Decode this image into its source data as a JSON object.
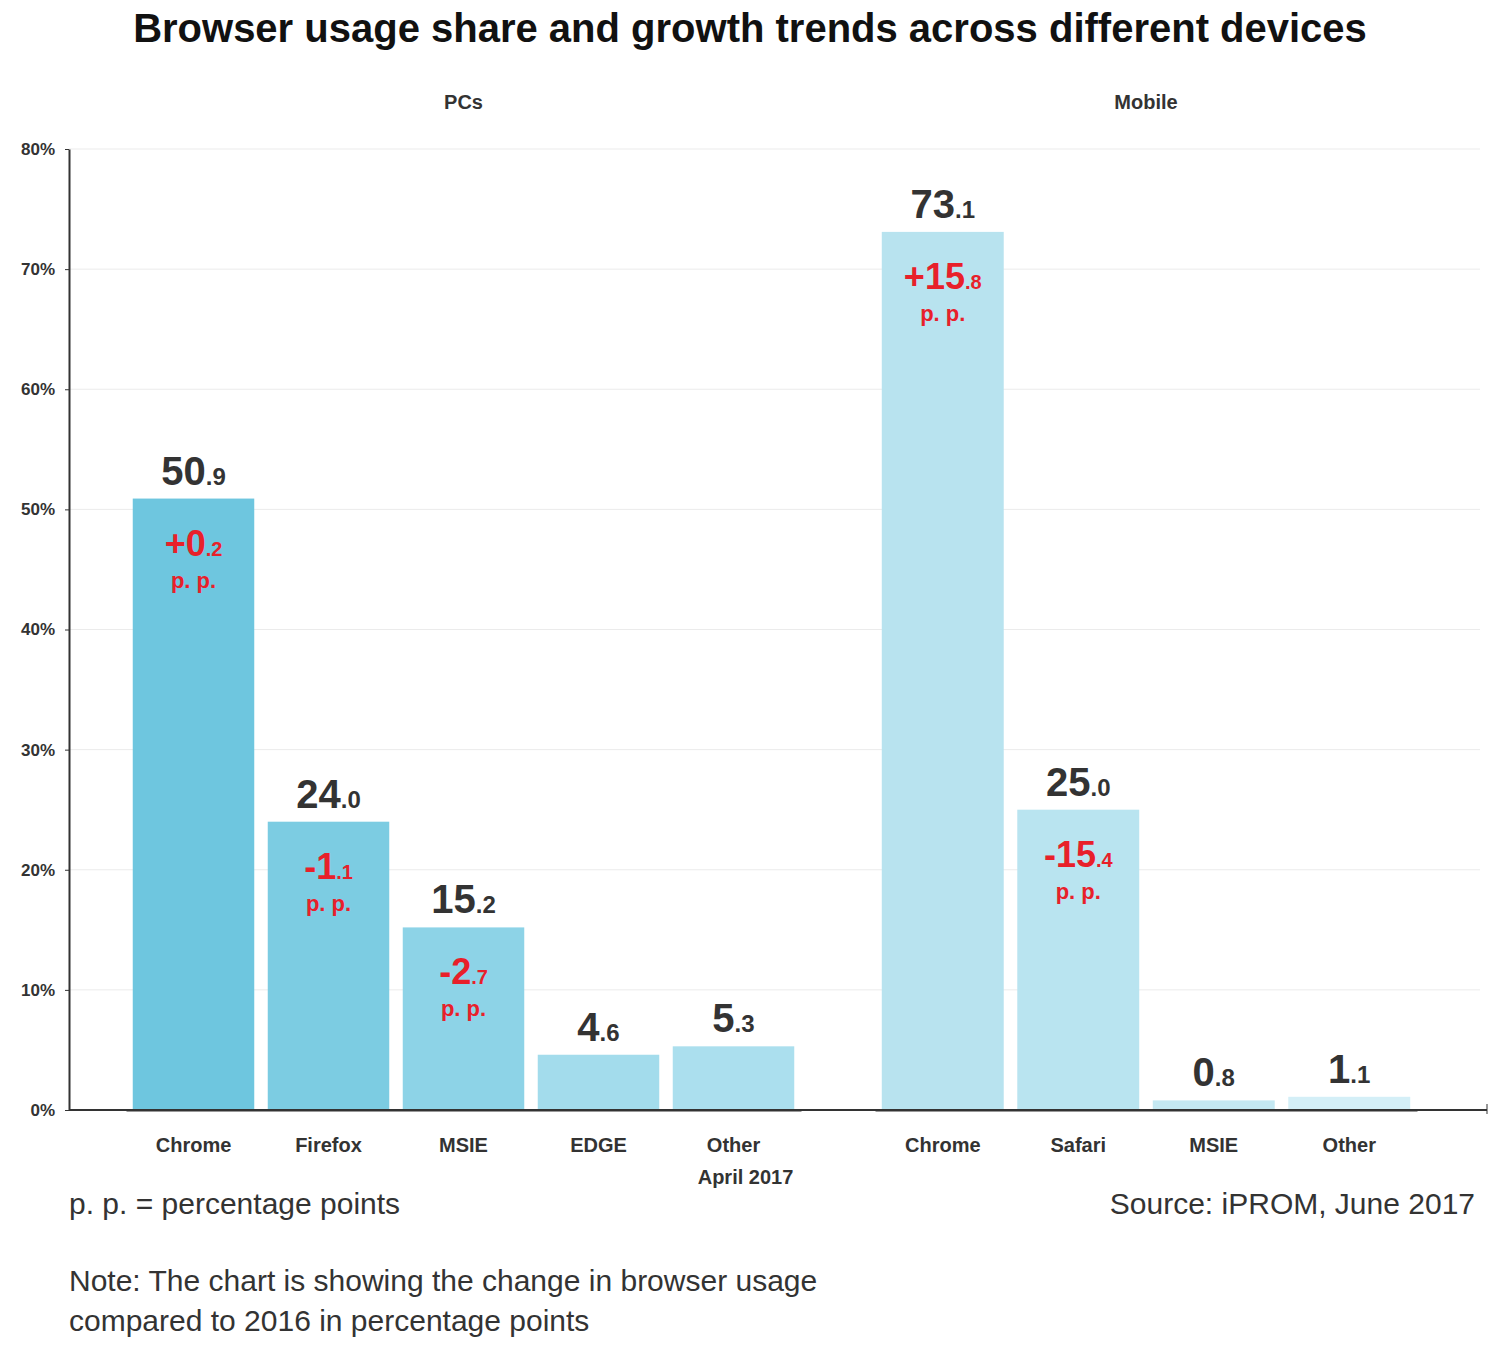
{
  "title": "Browser usage share and growth trends across different devices",
  "footnote": "p. p. = percentage points",
  "source": "Source: iPROM, June 2017",
  "note": [
    "Note: The chart is showing the change in browser usage",
    "compared to 2016 in percentage points"
  ],
  "chart_data": [
    {
      "type": "bar",
      "title": "PCs",
      "categories": [
        "Chrome",
        "Firefox",
        "MSIE",
        "EDGE",
        "Other"
      ],
      "x_label": "April 2017",
      "values": [
        50.9,
        24.0,
        15.2,
        4.6,
        5.3
      ],
      "value_labels": [
        "50.9",
        "24.0",
        "15.2",
        "4.6",
        "5.3"
      ],
      "data_labels": true,
      "changes": [
        0.2,
        -1.1,
        -2.7,
        null,
        null
      ],
      "change_labels": [
        "+0.2",
        "-1.1",
        "-2.7",
        null,
        null
      ],
      "change_unit": "p. p.",
      "colors": [
        "#6ec6df",
        "#7ccce2",
        "#8dd3e7",
        "#a3dcec",
        "#abdfee"
      ],
      "ylim": [
        0,
        80
      ],
      "yticks": [
        {
          "value": 0,
          "label": "0%"
        },
        {
          "value": 10,
          "label": "10%"
        },
        {
          "value": 20,
          "label": "20%"
        },
        {
          "value": 30,
          "label": "30%"
        },
        {
          "value": 40,
          "label": "40%"
        },
        {
          "value": 50,
          "label": "50%"
        },
        {
          "value": 60,
          "label": "60%"
        },
        {
          "value": 70,
          "label": "70%"
        },
        {
          "value": 80,
          "label": "80%"
        }
      ],
      "grid": true
    },
    {
      "type": "bar",
      "title": "Mobile",
      "categories": [
        "Chrome",
        "Safari",
        "MSIE",
        "Other"
      ],
      "values": [
        73.1,
        25.0,
        0.8,
        1.1
      ],
      "value_labels": [
        "73.1",
        "25.0",
        "0.8",
        "1.1"
      ],
      "data_labels": true,
      "changes": [
        15.8,
        -15.4,
        null,
        null
      ],
      "change_labels": [
        "+15.8",
        "-15.4",
        null,
        null
      ],
      "change_unit": "p. p.",
      "colors": [
        "#b8e3ef",
        "#b9e4f0",
        "#c4e8f2",
        "#d4eff7"
      ],
      "ylim": [
        0,
        80
      ],
      "yticks": [
        {
          "value": 0,
          "label": "0%"
        },
        {
          "value": 10,
          "label": "10%"
        },
        {
          "value": 20,
          "label": "20%"
        },
        {
          "value": 30,
          "label": "30%"
        },
        {
          "value": 40,
          "label": "40%"
        },
        {
          "value": 50,
          "label": "50%"
        },
        {
          "value": 60,
          "label": "60%"
        },
        {
          "value": 70,
          "label": "70%"
        },
        {
          "value": 80,
          "label": "80%"
        }
      ],
      "grid": true,
      "tick_labels": "x"
    }
  ]
}
